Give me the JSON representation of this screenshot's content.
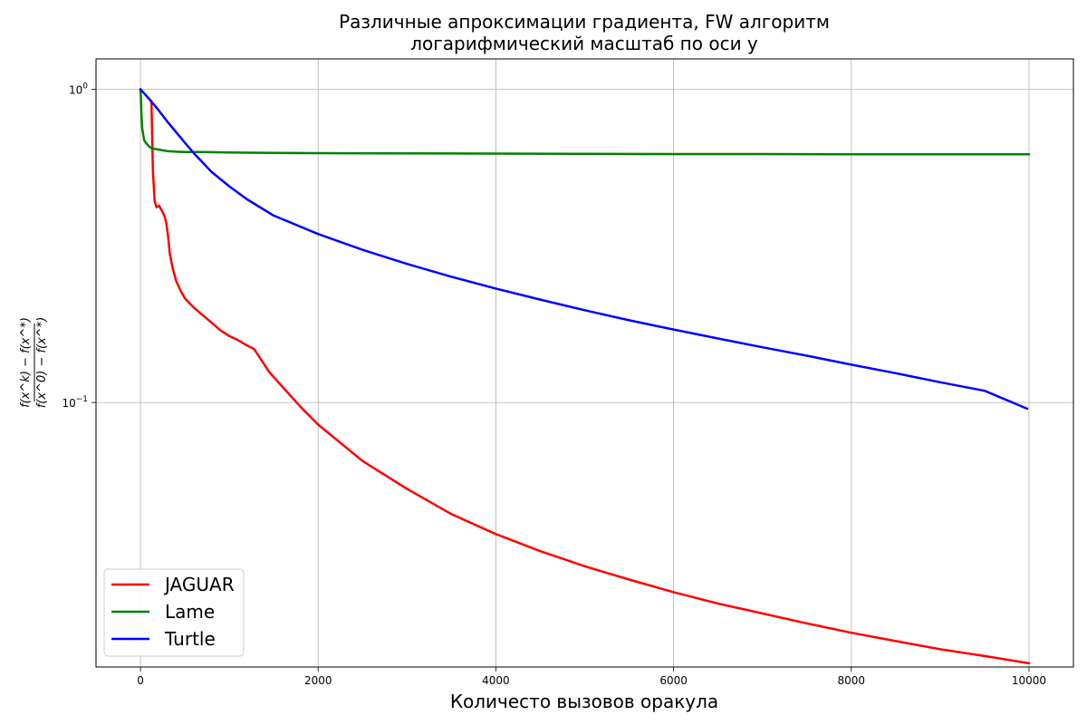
{
  "chart_data": {
    "type": "line",
    "title": [
      "Различные апроксимации градиента, FW алгоритм",
      "логарифмический масштаб по оси y"
    ],
    "xlabel": "Количесто вызовов оракула",
    "ylabel": {
      "numerator": "f(x^k) − f(x^*)",
      "denominator": "f(x^0) − f(x^*)"
    },
    "y_scale": "log",
    "xlim": [
      -500,
      10500
    ],
    "ylim": [
      0.0143,
      1.25
    ],
    "x_ticks": [
      0,
      2000,
      4000,
      6000,
      8000,
      10000
    ],
    "x_tick_labels": [
      "0",
      "2000",
      "4000",
      "6000",
      "8000",
      "10000"
    ],
    "y_ticks": [
      1,
      0.1
    ],
    "y_tick_labels": [
      {
        "base": "10",
        "exp": "0"
      },
      {
        "base": "10",
        "exp": "−1"
      }
    ],
    "grid": true,
    "legend": {
      "placement": "lower-left"
    },
    "series": [
      {
        "name": "JAGUAR",
        "color": "#ff0000",
        "x": [
          120,
          125,
          130,
          140,
          160,
          180,
          210,
          240,
          270,
          290,
          310,
          330,
          360,
          400,
          450,
          500,
          550,
          600,
          700,
          800,
          900,
          1000,
          1100,
          1200,
          1280,
          1350,
          1450,
          1600,
          1800,
          2000,
          2500,
          3000,
          3500,
          4000,
          4500,
          5000,
          5500,
          6000,
          6500,
          7000,
          7500,
          8000,
          8500,
          9000,
          9500,
          10000
        ],
        "y": [
          0.92,
          0.88,
          0.75,
          0.55,
          0.44,
          0.42,
          0.425,
          0.41,
          0.395,
          0.375,
          0.34,
          0.3,
          0.27,
          0.245,
          0.228,
          0.215,
          0.208,
          0.201,
          0.19,
          0.18,
          0.17,
          0.163,
          0.158,
          0.152,
          0.148,
          0.138,
          0.125,
          0.112,
          0.097,
          0.085,
          0.065,
          0.053,
          0.044,
          0.038,
          0.0335,
          0.03,
          0.0272,
          0.0248,
          0.0228,
          0.0212,
          0.0197,
          0.0184,
          0.0173,
          0.0163,
          0.0155,
          0.0147
        ]
      },
      {
        "name": "Lame",
        "color": "#008000",
        "x": [
          0,
          5,
          10,
          20,
          40,
          60,
          80,
          100,
          130,
          160,
          200,
          250,
          300,
          400,
          500,
          700,
          1000,
          1500,
          2000,
          3000,
          4000,
          5000,
          6000,
          7000,
          8000,
          9000,
          10000
        ],
        "y": [
          1.0,
          0.95,
          0.85,
          0.75,
          0.69,
          0.675,
          0.665,
          0.655,
          0.648,
          0.645,
          0.642,
          0.638,
          0.635,
          0.632,
          0.63,
          0.63,
          0.628,
          0.626,
          0.625,
          0.624,
          0.623,
          0.622,
          0.621,
          0.621,
          0.62,
          0.62,
          0.62
        ]
      },
      {
        "name": "Turtle",
        "color": "#0000ff",
        "x": [
          0,
          50,
          100,
          200,
          300,
          400,
          500,
          600,
          800,
          1000,
          1200,
          1500,
          2000,
          2500,
          3000,
          3500,
          4000,
          4500,
          5000,
          5500,
          6000,
          6500,
          7000,
          7500,
          8000,
          8500,
          9000,
          9500,
          9980
        ],
        "y": [
          1.0,
          0.965,
          0.93,
          0.86,
          0.79,
          0.73,
          0.675,
          0.625,
          0.545,
          0.49,
          0.445,
          0.395,
          0.345,
          0.307,
          0.277,
          0.252,
          0.231,
          0.213,
          0.197,
          0.183,
          0.171,
          0.16,
          0.15,
          0.141,
          0.132,
          0.124,
          0.116,
          0.109,
          0.0955
        ]
      }
    ]
  }
}
